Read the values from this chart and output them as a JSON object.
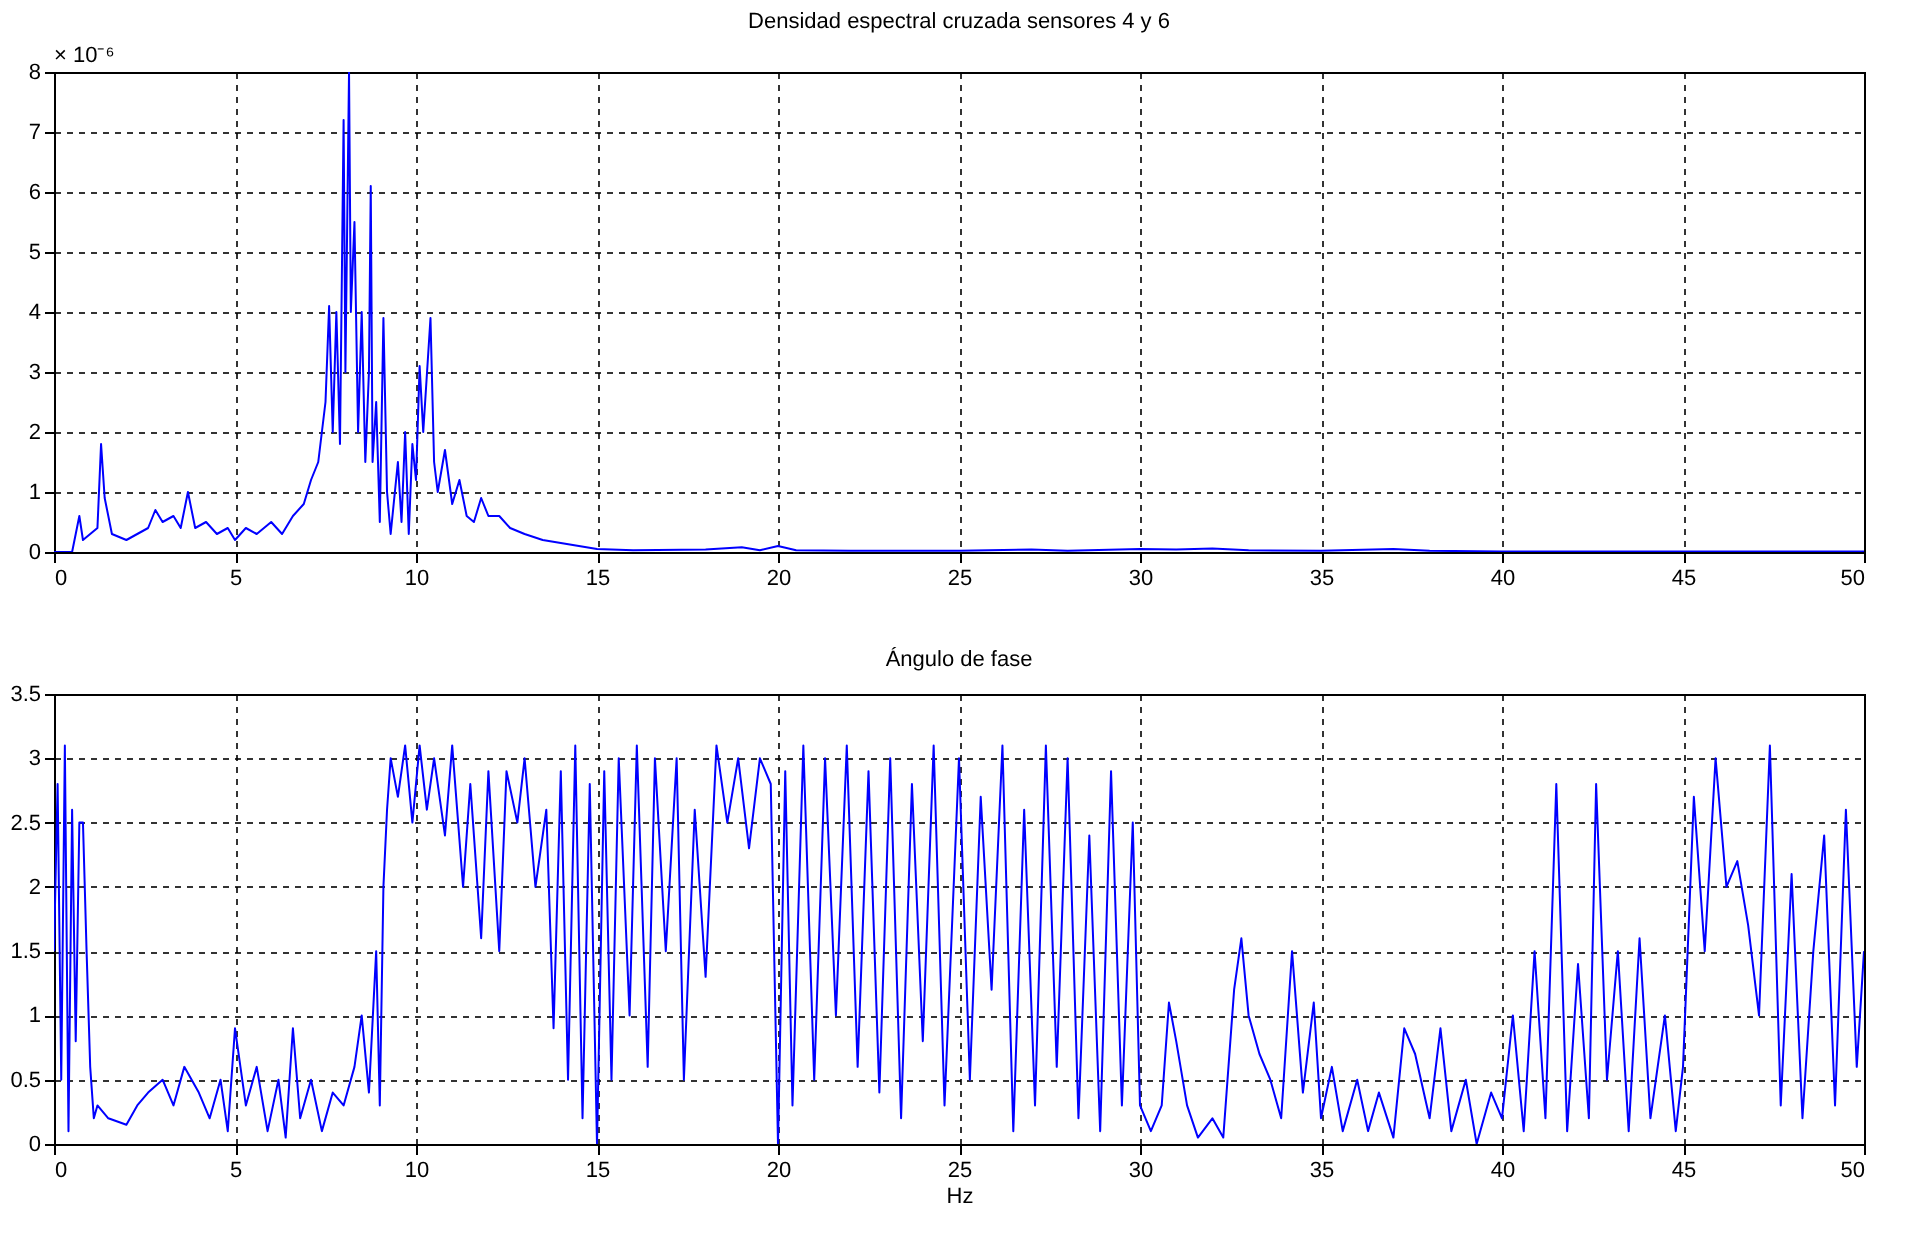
{
  "chart_data": [
    {
      "type": "line",
      "title": "Densidad espectral cruzada sensores 4 y 6",
      "annotations": [
        "× 10⁻⁶"
      ],
      "x": [
        0,
        0.5,
        0.7,
        0.8,
        1.0,
        1.2,
        1.3,
        1.4,
        1.6,
        2.0,
        2.3,
        2.6,
        2.8,
        3.0,
        3.3,
        3.5,
        3.7,
        3.9,
        4.2,
        4.5,
        4.8,
        5.0,
        5.3,
        5.6,
        6.0,
        6.3,
        6.6,
        6.9,
        7.1,
        7.3,
        7.5,
        7.6,
        7.7,
        7.8,
        7.9,
        8.0,
        8.05,
        8.15,
        8.2,
        8.3,
        8.4,
        8.5,
        8.6,
        8.7,
        8.75,
        8.8,
        8.9,
        9.0,
        9.1,
        9.2,
        9.3,
        9.5,
        9.6,
        9.7,
        9.8,
        9.9,
        10.0,
        10.1,
        10.2,
        10.4,
        10.5,
        10.6,
        10.8,
        11.0,
        11.2,
        11.4,
        11.6,
        11.8,
        12.0,
        12.3,
        12.6,
        13.0,
        13.5,
        14.0,
        14.5,
        15,
        16,
        18,
        19,
        19.5,
        20,
        20.5,
        22,
        25,
        27,
        28,
        30,
        31,
        32,
        33,
        35,
        37,
        38,
        40,
        45,
        50
      ],
      "series": [
        {
          "color": "#0000ff",
          "values": [
            0,
            0,
            0.6,
            0.2,
            0.3,
            0.4,
            1.8,
            0.9,
            0.3,
            0.2,
            0.3,
            0.4,
            0.7,
            0.5,
            0.6,
            0.4,
            1.0,
            0.4,
            0.5,
            0.3,
            0.4,
            0.2,
            0.4,
            0.3,
            0.5,
            0.3,
            0.6,
            0.8,
            1.2,
            1.5,
            2.5,
            4.1,
            2.0,
            4.0,
            1.8,
            7.2,
            3.0,
            8.0,
            4.0,
            5.5,
            2.0,
            4.0,
            1.5,
            3.0,
            6.1,
            1.5,
            2.5,
            0.5,
            3.9,
            1.0,
            0.3,
            1.5,
            0.5,
            2.0,
            0.3,
            1.8,
            1.2,
            3.1,
            2.0,
            3.9,
            1.5,
            1.0,
            1.7,
            0.8,
            1.2,
            0.6,
            0.5,
            0.9,
            0.6,
            0.6,
            0.4,
            0.3,
            0.2,
            0.15,
            0.1,
            0.05,
            0.03,
            0.04,
            0.08,
            0.03,
            0.1,
            0.03,
            0.02,
            0.02,
            0.04,
            0.02,
            0.05,
            0.04,
            0.06,
            0.03,
            0.02,
            0.05,
            0.02,
            0.01,
            0.01,
            0.01
          ]
        }
      ],
      "xlim": [
        0,
        50
      ],
      "xticks": [
        0,
        5,
        10,
        15,
        20,
        25,
        30,
        35,
        40,
        45,
        50
      ],
      "ylim": [
        0,
        8
      ],
      "yticks": [
        0,
        1,
        2,
        3,
        4,
        5,
        6,
        7,
        8
      ],
      "grid": true,
      "line_style": "solid"
    },
    {
      "type": "line",
      "title": "Ángulo de fase",
      "xlabel": "Hz",
      "x": [
        0,
        0.1,
        0.2,
        0.3,
        0.4,
        0.5,
        0.6,
        0.7,
        0.8,
        0.9,
        1.0,
        1.1,
        1.2,
        1.5,
        2.0,
        2.3,
        2.6,
        3.0,
        3.3,
        3.6,
        4.0,
        4.3,
        4.6,
        4.8,
        5.0,
        5.3,
        5.6,
        5.9,
        6.2,
        6.4,
        6.6,
        6.8,
        7.1,
        7.4,
        7.7,
        8.0,
        8.3,
        8.5,
        8.7,
        8.9,
        9.0,
        9.1,
        9.2,
        9.3,
        9.5,
        9.7,
        9.9,
        10.1,
        10.3,
        10.5,
        10.8,
        11.0,
        11.3,
        11.5,
        11.8,
        12.0,
        12.3,
        12.5,
        12.8,
        13.0,
        13.3,
        13.6,
        13.8,
        14.0,
        14.2,
        14.4,
        14.6,
        14.8,
        15.0,
        15.2,
        15.4,
        15.6,
        15.9,
        16.1,
        16.4,
        16.6,
        16.9,
        17.2,
        17.4,
        17.7,
        18.0,
        18.3,
        18.6,
        18.9,
        19.2,
        19.5,
        19.8,
        20.0,
        20.2,
        20.4,
        20.7,
        21.0,
        21.3,
        21.6,
        21.9,
        22.2,
        22.5,
        22.8,
        23.1,
        23.4,
        23.7,
        24.0,
        24.3,
        24.6,
        25.0,
        25.3,
        25.6,
        25.9,
        26.2,
        26.5,
        26.8,
        27.1,
        27.4,
        27.7,
        28.0,
        28.3,
        28.6,
        28.9,
        29.2,
        29.5,
        29.8,
        30.0,
        30.3,
        30.6,
        30.8,
        31.0,
        31.3,
        31.6,
        32.0,
        32.3,
        32.6,
        32.8,
        33.0,
        33.3,
        33.6,
        33.9,
        34.2,
        34.5,
        34.8,
        35.0,
        35.3,
        35.6,
        36.0,
        36.3,
        36.6,
        37.0,
        37.3,
        37.6,
        38.0,
        38.3,
        38.6,
        39.0,
        39.3,
        39.7,
        40.0,
        40.3,
        40.6,
        40.9,
        41.2,
        41.5,
        41.8,
        42.1,
        42.4,
        42.6,
        42.9,
        43.2,
        43.5,
        43.8,
        44.1,
        44.5,
        44.8,
        45.0,
        45.3,
        45.6,
        45.9,
        46.2,
        46.5,
        46.8,
        47.1,
        47.4,
        47.7,
        48.0,
        48.3,
        48.6,
        48.9,
        49.2,
        49.5,
        49.8,
        50.0
      ],
      "series": [
        {
          "color": "#0000ff",
          "values": [
            1.5,
            2.8,
            0.5,
            3.1,
            0.1,
            2.6,
            0.8,
            2.5,
            2.5,
            1.5,
            0.6,
            0.2,
            0.3,
            0.2,
            0.15,
            0.3,
            0.4,
            0.5,
            0.3,
            0.6,
            0.4,
            0.2,
            0.5,
            0.1,
            0.9,
            0.3,
            0.6,
            0.1,
            0.5,
            0.05,
            0.9,
            0.2,
            0.5,
            0.1,
            0.4,
            0.3,
            0.6,
            1.0,
            0.4,
            1.5,
            0.3,
            2.0,
            2.6,
            3.0,
            2.7,
            3.1,
            2.5,
            3.1,
            2.6,
            3.0,
            2.4,
            3.1,
            2.0,
            2.8,
            1.6,
            2.9,
            1.5,
            2.9,
            2.5,
            3.0,
            2.0,
            2.6,
            0.9,
            2.9,
            0.5,
            3.1,
            0.2,
            2.8,
            0.0,
            2.9,
            0.5,
            3.0,
            1.0,
            3.1,
            0.6,
            3.0,
            1.5,
            3.0,
            0.5,
            2.6,
            1.3,
            3.1,
            2.5,
            3.0,
            2.3,
            3.0,
            2.8,
            0.0,
            2.9,
            0.3,
            3.1,
            0.5,
            3.0,
            1.0,
            3.1,
            0.6,
            2.9,
            0.4,
            3.0,
            0.2,
            2.8,
            0.8,
            3.1,
            0.3,
            3.0,
            0.5,
            2.7,
            1.2,
            3.1,
            0.1,
            2.6,
            0.3,
            3.1,
            0.6,
            3.0,
            0.2,
            2.4,
            0.1,
            2.9,
            0.3,
            2.5,
            0.3,
            0.1,
            0.3,
            1.1,
            0.8,
            0.3,
            0.05,
            0.2,
            0.05,
            1.2,
            1.6,
            1.0,
            0.7,
            0.5,
            0.2,
            1.5,
            0.4,
            1.1,
            0.2,
            0.6,
            0.1,
            0.5,
            0.1,
            0.4,
            0.05,
            0.9,
            0.7,
            0.2,
            0.9,
            0.1,
            0.5,
            0.0,
            0.4,
            0.2,
            1.0,
            0.1,
            1.5,
            0.2,
            2.8,
            0.1,
            1.4,
            0.2,
            2.8,
            0.5,
            1.5,
            0.1,
            1.6,
            0.2,
            1.0,
            0.1,
            0.6,
            2.7,
            1.5,
            3.0,
            2.0,
            2.2,
            1.7,
            1.0,
            3.1,
            0.3,
            2.1,
            0.2,
            1.5,
            2.4,
            0.3,
            2.6,
            0.6,
            1.5
          ]
        }
      ],
      "xlim": [
        0,
        50
      ],
      "xticks": [
        0,
        5,
        10,
        15,
        20,
        25,
        30,
        35,
        40,
        45,
        50
      ],
      "ylim": [
        0,
        3.5
      ],
      "yticks": [
        0,
        0.5,
        1,
        1.5,
        2,
        2.5,
        3,
        3.5
      ],
      "grid": true,
      "line_style": "solid"
    }
  ]
}
